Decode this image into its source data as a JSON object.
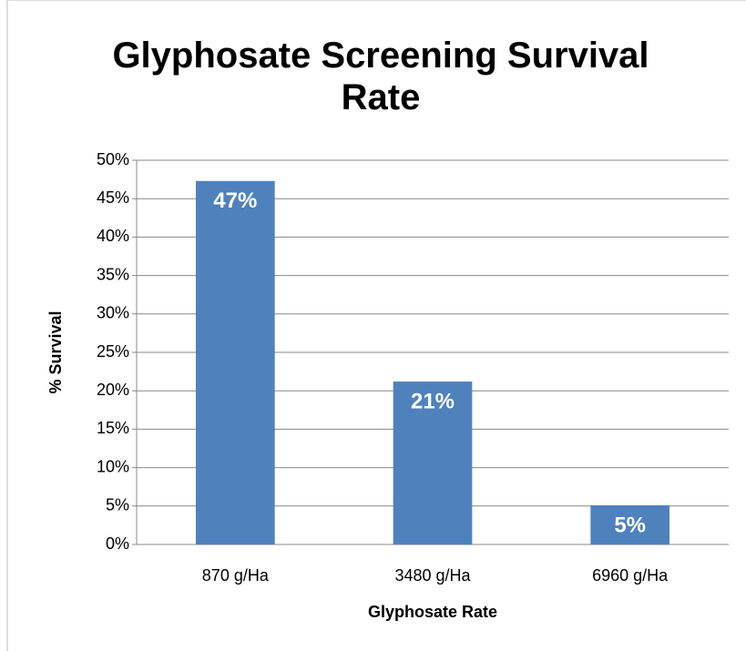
{
  "chart_data": {
    "type": "bar",
    "title": "Glyphosate Screening Survival Rate",
    "x_label": "Glyphosate Rate",
    "y_label": "% Survival",
    "categories": [
      "870 g/Ha",
      "3480 g/Ha",
      "6960 g/Ha"
    ],
    "values": [
      47.3,
      21.2,
      5.1
    ],
    "value_labels": [
      "47%",
      "21%",
      "5%"
    ],
    "color": "#4f81bd",
    "ylim": [
      0,
      50
    ],
    "yticks": [
      {
        "value": 0,
        "label": "0%"
      },
      {
        "value": 5,
        "label": "5%"
      },
      {
        "value": 10,
        "label": "10%"
      },
      {
        "value": 15,
        "label": "15%"
      },
      {
        "value": 20,
        "label": "20%"
      },
      {
        "value": 25,
        "label": "25%"
      },
      {
        "value": 30,
        "label": "30%"
      },
      {
        "value": 35,
        "label": "35%"
      },
      {
        "value": 40,
        "label": "40%"
      },
      {
        "value": 45,
        "label": "45%"
      },
      {
        "value": 50,
        "label": "50%"
      }
    ],
    "grid": true
  }
}
